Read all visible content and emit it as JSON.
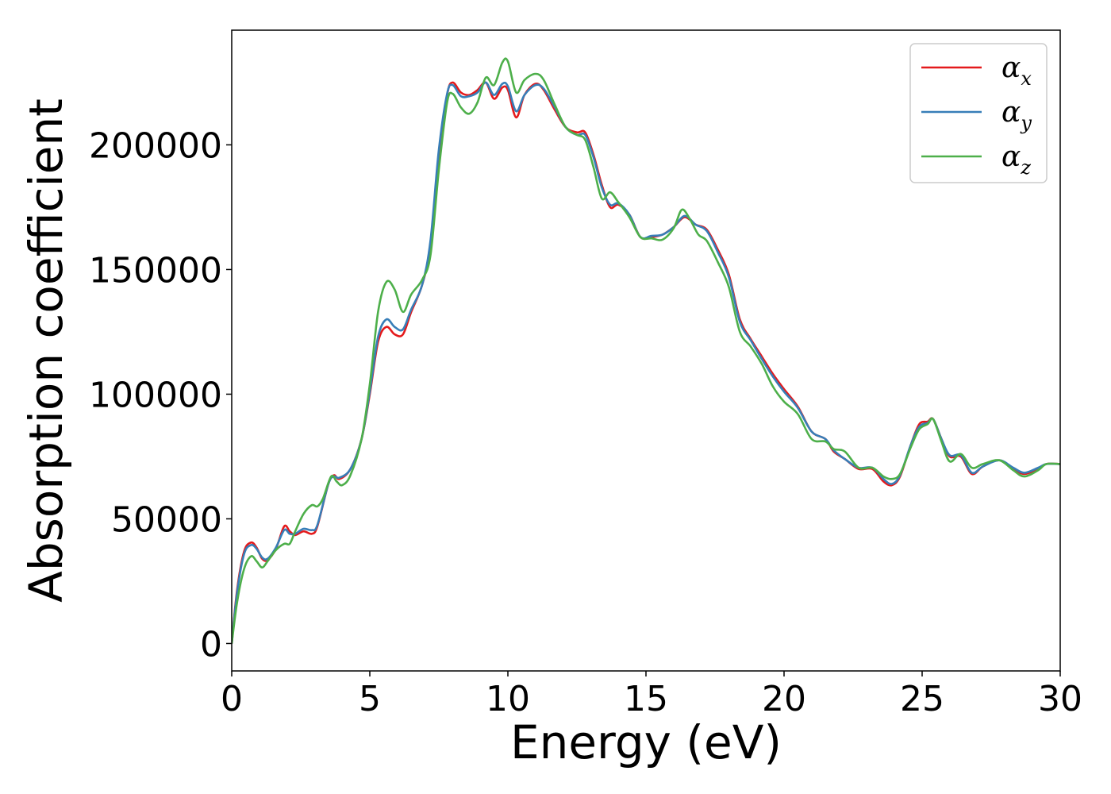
{
  "chart_data": {
    "type": "line",
    "title": "",
    "xlabel": "Energy (eV)",
    "ylabel": "Absorption coefficient",
    "xlim": [
      0,
      30
    ],
    "ylim": [
      -11000,
      246000
    ],
    "x_ticks": [
      0,
      5,
      10,
      15,
      20,
      25,
      30
    ],
    "y_ticks": [
      0,
      50000,
      100000,
      150000,
      200000
    ],
    "x_tick_labels": [
      "0",
      "5",
      "10",
      "15",
      "20",
      "25",
      "30"
    ],
    "y_tick_labels": [
      "0",
      "50000",
      "100000",
      "150000",
      "200000"
    ],
    "grid": false,
    "legend_position": "upper-right",
    "series": [
      {
        "name": "α_x",
        "label_main": "α",
        "label_sub": "x",
        "color": "#e41a1c",
        "points": [
          [
            0,
            0
          ],
          [
            0.2,
            22000
          ],
          [
            0.45,
            37000
          ],
          [
            0.7,
            40500
          ],
          [
            0.9,
            38500
          ],
          [
            1.1,
            34000
          ],
          [
            1.3,
            33500
          ],
          [
            1.6,
            38000
          ],
          [
            1.9,
            47000
          ],
          [
            2.1,
            45000
          ],
          [
            2.3,
            43500
          ],
          [
            2.6,
            45000
          ],
          [
            2.9,
            44000
          ],
          [
            3.1,
            47000
          ],
          [
            3.5,
            64000
          ],
          [
            3.7,
            67500
          ],
          [
            3.9,
            66000
          ],
          [
            4.3,
            70000
          ],
          [
            4.7,
            82000
          ],
          [
            5.0,
            100000
          ],
          [
            5.3,
            121000
          ],
          [
            5.6,
            127000
          ],
          [
            5.9,
            124000
          ],
          [
            6.2,
            124000
          ],
          [
            6.5,
            133000
          ],
          [
            6.9,
            144000
          ],
          [
            7.2,
            160000
          ],
          [
            7.5,
            195000
          ],
          [
            7.8,
            220000
          ],
          [
            8.0,
            225000
          ],
          [
            8.3,
            221000
          ],
          [
            8.6,
            220000
          ],
          [
            8.9,
            222000
          ],
          [
            9.2,
            225000
          ],
          [
            9.5,
            218500
          ],
          [
            9.8,
            223000
          ],
          [
            10.0,
            222000
          ],
          [
            10.3,
            211000
          ],
          [
            10.6,
            220000
          ],
          [
            11.0,
            224500
          ],
          [
            11.3,
            222000
          ],
          [
            11.7,
            214000
          ],
          [
            12.1,
            207000
          ],
          [
            12.5,
            205000
          ],
          [
            12.8,
            205000
          ],
          [
            13.1,
            196000
          ],
          [
            13.4,
            184000
          ],
          [
            13.7,
            175000
          ],
          [
            14.0,
            176000
          ],
          [
            14.4,
            172000
          ],
          [
            14.8,
            163000
          ],
          [
            15.2,
            163000
          ],
          [
            15.6,
            164000
          ],
          [
            16.0,
            167000
          ],
          [
            16.4,
            171000
          ],
          [
            16.8,
            168000
          ],
          [
            17.2,
            166000
          ],
          [
            17.6,
            158000
          ],
          [
            18.0,
            148000
          ],
          [
            18.4,
            130000
          ],
          [
            18.8,
            122000
          ],
          [
            19.2,
            115000
          ],
          [
            19.6,
            108000
          ],
          [
            20.0,
            102000
          ],
          [
            20.5,
            95000
          ],
          [
            21.0,
            85000
          ],
          [
            21.5,
            82000
          ],
          [
            21.8,
            77000
          ],
          [
            22.2,
            74000
          ],
          [
            22.7,
            70000
          ],
          [
            23.2,
            70000
          ],
          [
            23.6,
            65000
          ],
          [
            23.9,
            63500
          ],
          [
            24.2,
            67000
          ],
          [
            24.6,
            80000
          ],
          [
            24.9,
            88000
          ],
          [
            25.2,
            89000
          ],
          [
            25.4,
            90000
          ],
          [
            25.7,
            82000
          ],
          [
            26.0,
            75000
          ],
          [
            26.4,
            75000
          ],
          [
            26.8,
            68000
          ],
          [
            27.2,
            71000
          ],
          [
            27.8,
            73500
          ],
          [
            28.3,
            70000
          ],
          [
            28.7,
            68000
          ],
          [
            29.2,
            70000
          ],
          [
            29.5,
            72000
          ],
          [
            30,
            72000
          ]
        ]
      },
      {
        "name": "α_y",
        "label_main": "α",
        "label_sub": "y",
        "color": "#377eb8",
        "points": [
          [
            0,
            0
          ],
          [
            0.2,
            21000
          ],
          [
            0.45,
            36000
          ],
          [
            0.7,
            39500
          ],
          [
            0.9,
            38000
          ],
          [
            1.1,
            34500
          ],
          [
            1.3,
            34000
          ],
          [
            1.6,
            38500
          ],
          [
            1.9,
            45500
          ],
          [
            2.1,
            44000
          ],
          [
            2.3,
            44000
          ],
          [
            2.6,
            46000
          ],
          [
            2.9,
            45500
          ],
          [
            3.1,
            47500
          ],
          [
            3.5,
            64000
          ],
          [
            3.7,
            67000
          ],
          [
            3.9,
            66500
          ],
          [
            4.3,
            70000
          ],
          [
            4.7,
            82000
          ],
          [
            5.0,
            101000
          ],
          [
            5.3,
            123000
          ],
          [
            5.6,
            130000
          ],
          [
            5.9,
            127000
          ],
          [
            6.2,
            126000
          ],
          [
            6.5,
            134000
          ],
          [
            6.9,
            144000
          ],
          [
            7.2,
            162000
          ],
          [
            7.5,
            198000
          ],
          [
            7.8,
            220500
          ],
          [
            8.0,
            224000
          ],
          [
            8.3,
            219500
          ],
          [
            8.6,
            219500
          ],
          [
            8.9,
            221000
          ],
          [
            9.2,
            225000
          ],
          [
            9.5,
            220000
          ],
          [
            9.8,
            224500
          ],
          [
            10.0,
            223500
          ],
          [
            10.3,
            213500
          ],
          [
            10.6,
            220000
          ],
          [
            11.0,
            224000
          ],
          [
            11.3,
            222500
          ],
          [
            11.7,
            215000
          ],
          [
            12.1,
            207000
          ],
          [
            12.5,
            204000
          ],
          [
            12.8,
            204000
          ],
          [
            13.1,
            195000
          ],
          [
            13.4,
            183000
          ],
          [
            13.7,
            176000
          ],
          [
            14.0,
            176500
          ],
          [
            14.4,
            172000
          ],
          [
            14.8,
            163000
          ],
          [
            15.2,
            163500
          ],
          [
            15.6,
            164000
          ],
          [
            16.0,
            167000
          ],
          [
            16.4,
            171500
          ],
          [
            16.8,
            168000
          ],
          [
            17.2,
            165500
          ],
          [
            17.6,
            157000
          ],
          [
            18.0,
            147000
          ],
          [
            18.4,
            129000
          ],
          [
            18.8,
            121500
          ],
          [
            19.2,
            114000
          ],
          [
            19.6,
            107000
          ],
          [
            20.0,
            101000
          ],
          [
            20.5,
            94500
          ],
          [
            21.0,
            85000
          ],
          [
            21.5,
            82000
          ],
          [
            21.8,
            77500
          ],
          [
            22.2,
            74000
          ],
          [
            22.7,
            70500
          ],
          [
            23.2,
            70500
          ],
          [
            23.6,
            66000
          ],
          [
            23.9,
            64000
          ],
          [
            24.2,
            67500
          ],
          [
            24.6,
            80000
          ],
          [
            24.9,
            87000
          ],
          [
            25.2,
            88500
          ],
          [
            25.4,
            90000
          ],
          [
            25.7,
            82000
          ],
          [
            26.0,
            75500
          ],
          [
            26.4,
            75500
          ],
          [
            26.8,
            68500
          ],
          [
            27.2,
            71000
          ],
          [
            27.8,
            73500
          ],
          [
            28.3,
            70500
          ],
          [
            28.7,
            68500
          ],
          [
            29.2,
            70500
          ],
          [
            29.5,
            72000
          ],
          [
            30,
            72000
          ]
        ]
      },
      {
        "name": "α_z",
        "label_main": "α",
        "label_sub": "z",
        "color": "#4daf4a",
        "points": [
          [
            0,
            0
          ],
          [
            0.2,
            17000
          ],
          [
            0.45,
            30000
          ],
          [
            0.7,
            35000
          ],
          [
            0.9,
            33000
          ],
          [
            1.1,
            30500
          ],
          [
            1.3,
            33000
          ],
          [
            1.6,
            37500
          ],
          [
            1.9,
            40000
          ],
          [
            2.1,
            40000
          ],
          [
            2.3,
            45000
          ],
          [
            2.6,
            52000
          ],
          [
            2.9,
            55500
          ],
          [
            3.1,
            55000
          ],
          [
            3.3,
            58000
          ],
          [
            3.6,
            67000
          ],
          [
            3.8,
            65000
          ],
          [
            4.0,
            63500
          ],
          [
            4.3,
            67500
          ],
          [
            4.7,
            82000
          ],
          [
            5.0,
            104000
          ],
          [
            5.3,
            133000
          ],
          [
            5.6,
            145000
          ],
          [
            5.9,
            142000
          ],
          [
            6.2,
            133000
          ],
          [
            6.5,
            140000
          ],
          [
            6.9,
            146000
          ],
          [
            7.2,
            156000
          ],
          [
            7.5,
            190000
          ],
          [
            7.8,
            217000
          ],
          [
            8.0,
            220500
          ],
          [
            8.3,
            215000
          ],
          [
            8.6,
            212500
          ],
          [
            8.9,
            217000
          ],
          [
            9.2,
            227000
          ],
          [
            9.5,
            224000
          ],
          [
            9.8,
            233000
          ],
          [
            10.0,
            233500
          ],
          [
            10.3,
            221000
          ],
          [
            10.6,
            226000
          ],
          [
            11.0,
            228500
          ],
          [
            11.3,
            226000
          ],
          [
            11.7,
            216000
          ],
          [
            12.1,
            207000
          ],
          [
            12.5,
            204000
          ],
          [
            12.8,
            202000
          ],
          [
            13.1,
            191000
          ],
          [
            13.4,
            178500
          ],
          [
            13.7,
            181000
          ],
          [
            14.0,
            177000
          ],
          [
            14.4,
            171000
          ],
          [
            14.8,
            163000
          ],
          [
            15.2,
            162500
          ],
          [
            15.6,
            162000
          ],
          [
            16.0,
            166500
          ],
          [
            16.3,
            174000
          ],
          [
            16.6,
            170000
          ],
          [
            16.9,
            164000
          ],
          [
            17.2,
            161500
          ],
          [
            17.6,
            153000
          ],
          [
            18.0,
            143000
          ],
          [
            18.4,
            125000
          ],
          [
            18.8,
            119000
          ],
          [
            19.2,
            112000
          ],
          [
            19.6,
            103000
          ],
          [
            20.0,
            97000
          ],
          [
            20.5,
            92000
          ],
          [
            21.0,
            82000
          ],
          [
            21.5,
            81000
          ],
          [
            21.8,
            78000
          ],
          [
            22.2,
            77000
          ],
          [
            22.7,
            70500
          ],
          [
            23.2,
            70500
          ],
          [
            23.6,
            67000
          ],
          [
            23.9,
            66000
          ],
          [
            24.2,
            68000
          ],
          [
            24.6,
            79000
          ],
          [
            24.9,
            86000
          ],
          [
            25.2,
            88000
          ],
          [
            25.4,
            90000
          ],
          [
            25.7,
            81000
          ],
          [
            26.0,
            73000
          ],
          [
            26.4,
            76000
          ],
          [
            26.8,
            70500
          ],
          [
            27.2,
            72000
          ],
          [
            27.8,
            73500
          ],
          [
            28.3,
            69500
          ],
          [
            28.7,
            67000
          ],
          [
            29.2,
            69500
          ],
          [
            29.5,
            72000
          ],
          [
            30,
            72000
          ]
        ]
      }
    ]
  }
}
